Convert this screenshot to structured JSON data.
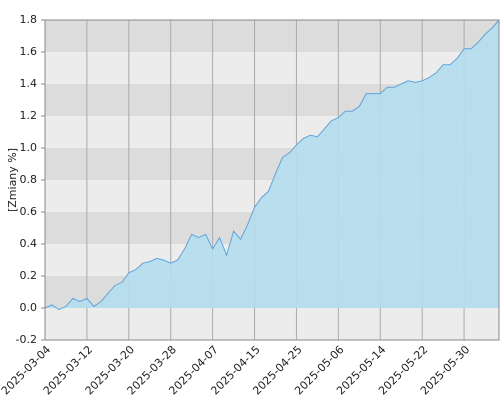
{
  "chart_data": {
    "type": "area",
    "y_label": "[Zmiany %]",
    "categories": [
      "2025-03-04",
      null,
      null,
      null,
      null,
      null,
      "2025-03-12",
      null,
      null,
      null,
      null,
      null,
      "2025-03-20",
      null,
      null,
      null,
      null,
      null,
      "2025-03-28",
      null,
      null,
      null,
      null,
      null,
      "2025-04-07",
      null,
      null,
      null,
      null,
      null,
      "2025-04-15",
      null,
      null,
      null,
      null,
      null,
      "2025-04-25",
      null,
      null,
      null,
      null,
      null,
      "2025-05-06",
      null,
      null,
      null,
      null,
      null,
      "2025-05-14",
      null,
      null,
      null,
      null,
      null,
      "2025-05-22",
      null,
      null,
      null,
      null,
      null,
      "2025-05-30",
      null,
      null,
      null,
      null,
      null
    ],
    "values": [
      0.0,
      0.02,
      -0.01,
      0.01,
      0.06,
      0.04,
      0.06,
      0.01,
      0.04,
      0.09,
      0.14,
      0.16,
      0.22,
      0.24,
      0.28,
      0.29,
      0.31,
      0.3,
      0.28,
      0.3,
      0.37,
      0.46,
      0.44,
      0.46,
      0.37,
      0.44,
      0.33,
      0.48,
      0.43,
      0.52,
      0.63,
      0.69,
      0.73,
      0.84,
      0.94,
      0.97,
      1.02,
      1.06,
      1.08,
      1.07,
      1.12,
      1.17,
      1.19,
      1.23,
      1.23,
      1.26,
      1.34,
      1.34,
      1.34,
      1.38,
      1.38,
      1.4,
      1.42,
      1.41,
      1.42,
      1.44,
      1.47,
      1.52,
      1.52,
      1.56,
      1.62,
      1.62,
      1.66,
      1.71,
      1.75,
      1.8
    ],
    "color": "#5aa5e0",
    "fill_color": "#b4dcee",
    "ylim": [
      -0.2,
      1.8
    ],
    "yticks": [
      -0.2,
      {
        "value": 0,
        "label": "0.0"
      },
      0.2,
      0.4,
      0.6,
      0.8,
      {
        "value": 1,
        "label": "1.0"
      },
      1.2,
      1.4,
      1.6,
      1.8
    ],
    "grid": true
  }
}
